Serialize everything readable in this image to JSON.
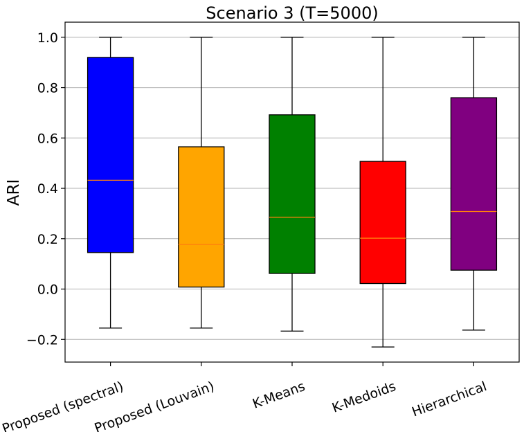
{
  "chart_data": {
    "type": "box",
    "title": "Scenario 3 (T=5000)",
    "xlabel": "",
    "ylabel": "ARI",
    "ylim": [
      -0.29,
      1.06
    ],
    "yticks": [
      -0.2,
      0.0,
      0.2,
      0.4,
      0.6,
      0.8,
      1.0
    ],
    "ytick_labels": [
      "−0.2",
      "0.0",
      "0.2",
      "0.4",
      "0.6",
      "0.8",
      "1.0"
    ],
    "grid": "horizontal",
    "categories": [
      "Proposed (spectral)",
      "Proposed (Louvain)",
      "K-Means",
      "K-Medoids",
      "Hierarchical"
    ],
    "boxes": [
      {
        "whisker_low": -0.155,
        "q1": 0.145,
        "median": 0.432,
        "q3": 0.92,
        "whisker_high": 1.0,
        "color": "#0000ff"
      },
      {
        "whisker_low": -0.155,
        "q1": 0.008,
        "median": 0.177,
        "q3": 0.565,
        "whisker_high": 1.0,
        "color": "#ffa500"
      },
      {
        "whisker_low": -0.167,
        "q1": 0.062,
        "median": 0.285,
        "q3": 0.692,
        "whisker_high": 1.0,
        "color": "#008000"
      },
      {
        "whisker_low": -0.23,
        "q1": 0.022,
        "median": 0.202,
        "q3": 0.507,
        "whisker_high": 1.0,
        "color": "#ff0000"
      },
      {
        "whisker_low": -0.163,
        "q1": 0.075,
        "median": 0.308,
        "q3": 0.76,
        "whisker_high": 1.0,
        "color": "#800080"
      }
    ],
    "median_color": "#ff7f0e"
  }
}
